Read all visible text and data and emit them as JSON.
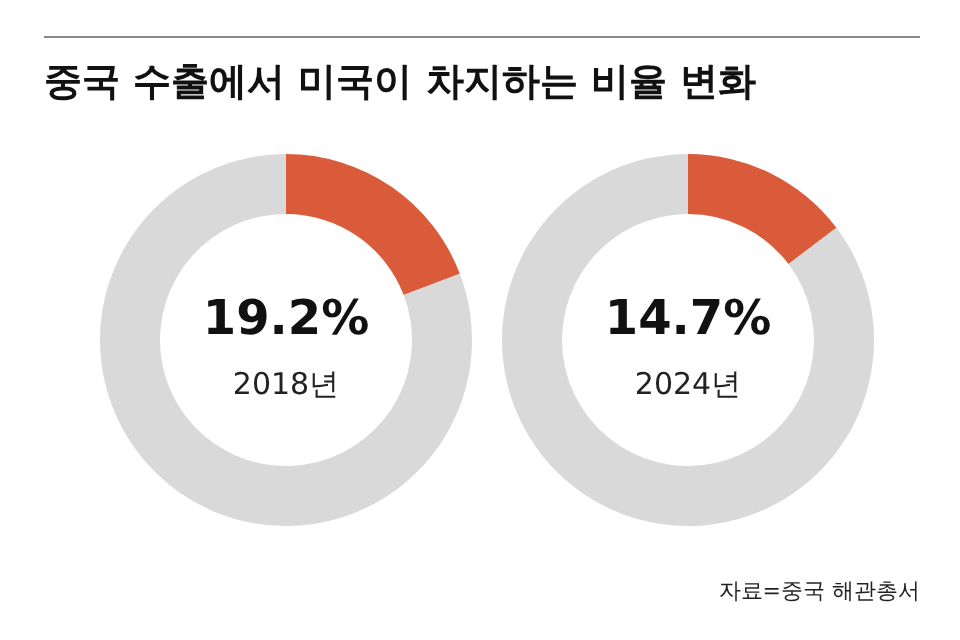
{
  "chart_data": [
    {
      "type": "donut",
      "title": "중국 수출에서 미국이 차지하는 비율 변화",
      "subtitle": "2018년",
      "categories": [
        null,
        null
      ],
      "values": [
        19.2,
        80.8
      ],
      "colors": [
        "#d95b3a",
        "#d9d9d9"
      ],
      "value_labels": [
        "19.2%",
        null
      ]
    },
    {
      "type": "donut",
      "subtitle": "2024년",
      "categories": [
        null,
        null
      ],
      "values": [
        14.7,
        85.3
      ],
      "colors": [
        "#d95b3a",
        "#d9d9d9"
      ],
      "value_labels": [
        "14.7%",
        null
      ],
      "annotations": [
        "자료=중국 해관총서"
      ]
    }
  ]
}
